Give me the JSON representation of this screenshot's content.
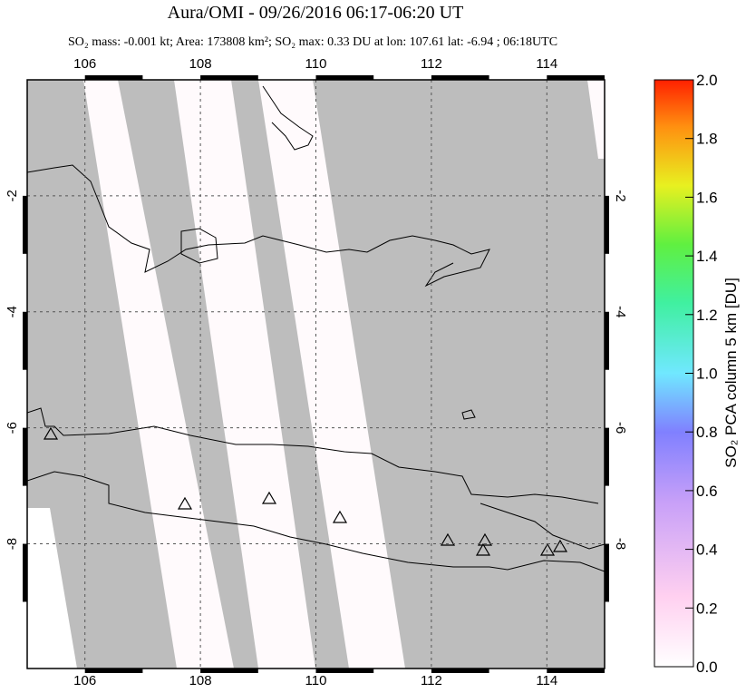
{
  "title": "Aura/OMI - 09/26/2016 06:17-06:20 UT",
  "subtitle": "SO₂ mass: -0.001 kt; Area: 173808 km²; SO₂ max: 0.33 DU at lon: 107.61 lat: -6.94 ; 06:18UTC",
  "map": {
    "xlim": [
      105,
      115
    ],
    "ylim": [
      -10.15,
      0
    ],
    "lon_ticks": [
      106,
      108,
      110,
      112,
      114
    ],
    "lat_ticks": [
      -2,
      -4,
      -6,
      -8
    ]
  },
  "colorbar": {
    "label": "SO₂ PCA column 5 km [DU]",
    "lim": [
      0,
      2
    ],
    "ticks": [
      {
        "value": 0,
        "label": "0.0"
      },
      0.2,
      0.4,
      0.6,
      0.8,
      {
        "value": 1,
        "label": "1.0"
      },
      1.2,
      1.4,
      1.6,
      1.8,
      {
        "value": 2,
        "label": "2.0"
      }
    ]
  }
}
